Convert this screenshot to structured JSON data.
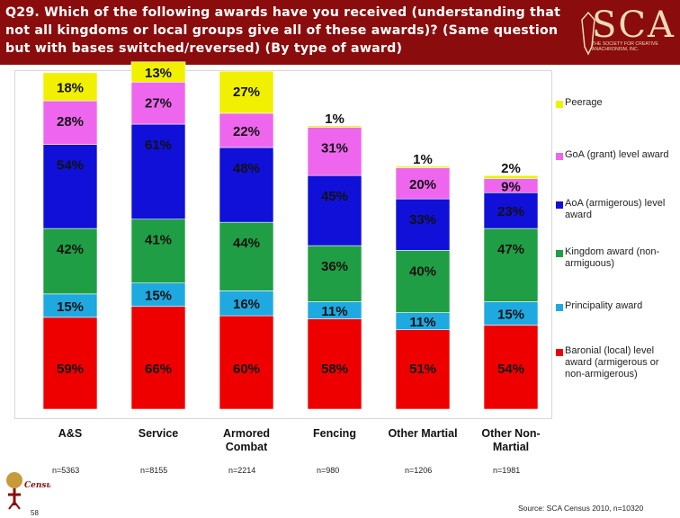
{
  "header": {
    "title": "Q29. Which of the following awards have you received (understanding that not all kingdoms or local groups give all of these awards)? (Same question but with bases switched/reversed) (By type of award)",
    "logo_text": "SCA",
    "logo_subtitle": "THE SOCIETY FOR CREATIVE ANACHRONISM, INC."
  },
  "chart_data": {
    "type": "bar",
    "stacked": true,
    "categories": [
      "A&S",
      "Service",
      "Armored Combat",
      "Fencing",
      "Other Martial",
      "Other Non-Martial"
    ],
    "category_lines": [
      [
        "A&S"
      ],
      [
        "Service"
      ],
      [
        "Armored",
        "Combat"
      ],
      [
        "Fencing"
      ],
      [
        "Other Martial"
      ],
      [
        "Other Non-",
        "Martial"
      ]
    ],
    "series": [
      {
        "name": "Baronial (local) level award (armigerous or non-armigerous)",
        "color": "#ee0000",
        "values": [
          59,
          66,
          60,
          58,
          51,
          54
        ]
      },
      {
        "name": "Principality award",
        "color": "#1fa9e1",
        "values": [
          15,
          15,
          16,
          11,
          11,
          15
        ]
      },
      {
        "name": "Kingdom award (non-armiguous)",
        "color": "#1f9e45",
        "values": [
          42,
          41,
          44,
          36,
          40,
          47
        ]
      },
      {
        "name": "AoA (armigerous) level award",
        "color": "#1010d8",
        "values": [
          54,
          61,
          48,
          45,
          33,
          23
        ]
      },
      {
        "name": "GoA (grant) level award",
        "color": "#ee66ee",
        "values": [
          28,
          27,
          22,
          31,
          20,
          9
        ]
      },
      {
        "name": "Peerage",
        "color": "#f0f000",
        "values": [
          18,
          13,
          27,
          1,
          1,
          2
        ]
      }
    ],
    "legend_position": "right",
    "n_values": [
      "n=5363",
      "n=8155",
      "n=2214",
      "n=980",
      "n=1206",
      "n=1981"
    ]
  },
  "footer": {
    "page_number": "58",
    "source": "Source: SCA Census 2010, n=10320",
    "census_logo_text": "Census"
  }
}
